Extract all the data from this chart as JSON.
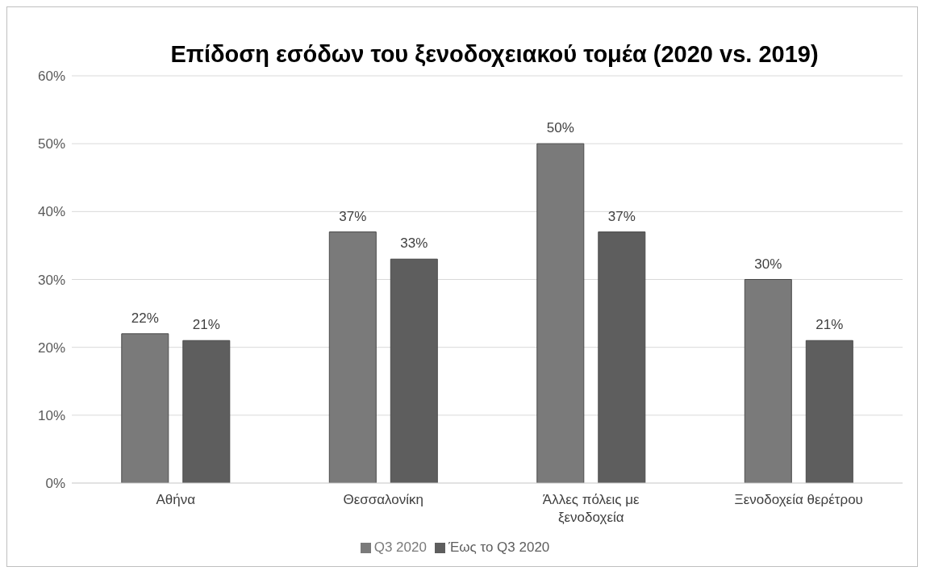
{
  "chart_data": {
    "type": "bar",
    "title": "Επίδοση εσόδων του ξενοδοχειακού τομέα (2020 vs. 2019)",
    "categories": [
      "Αθήνα",
      "Θεσσαλονίκη",
      "Άλλες πόλεις με ξενοδοχεία",
      "Ξενοδοχεία θερέτρου"
    ],
    "series": [
      {
        "name": "Q3 2020",
        "color": "#7a7a7a",
        "values": [
          22,
          37,
          50,
          30
        ],
        "value_labels": [
          "22%",
          "37%",
          "50%",
          "30%"
        ]
      },
      {
        "name": "Έως το Q3 2020",
        "color": "#5e5e5e",
        "values": [
          21,
          33,
          37,
          21
        ],
        "value_labels": [
          "21%",
          "33%",
          "37%",
          "21%"
        ]
      }
    ],
    "ylim": [
      0,
      60
    ],
    "yticks": [
      {
        "value": 0,
        "label": "0%"
      },
      {
        "value": 10,
        "label": "10%"
      },
      {
        "value": 20,
        "label": "20%"
      },
      {
        "value": 30,
        "label": "30%"
      },
      {
        "value": 40,
        "label": "40%"
      },
      {
        "value": 50,
        "label": "50%"
      },
      {
        "value": 60,
        "label": "60%"
      }
    ],
    "grid": "y",
    "legend": "bottom"
  }
}
